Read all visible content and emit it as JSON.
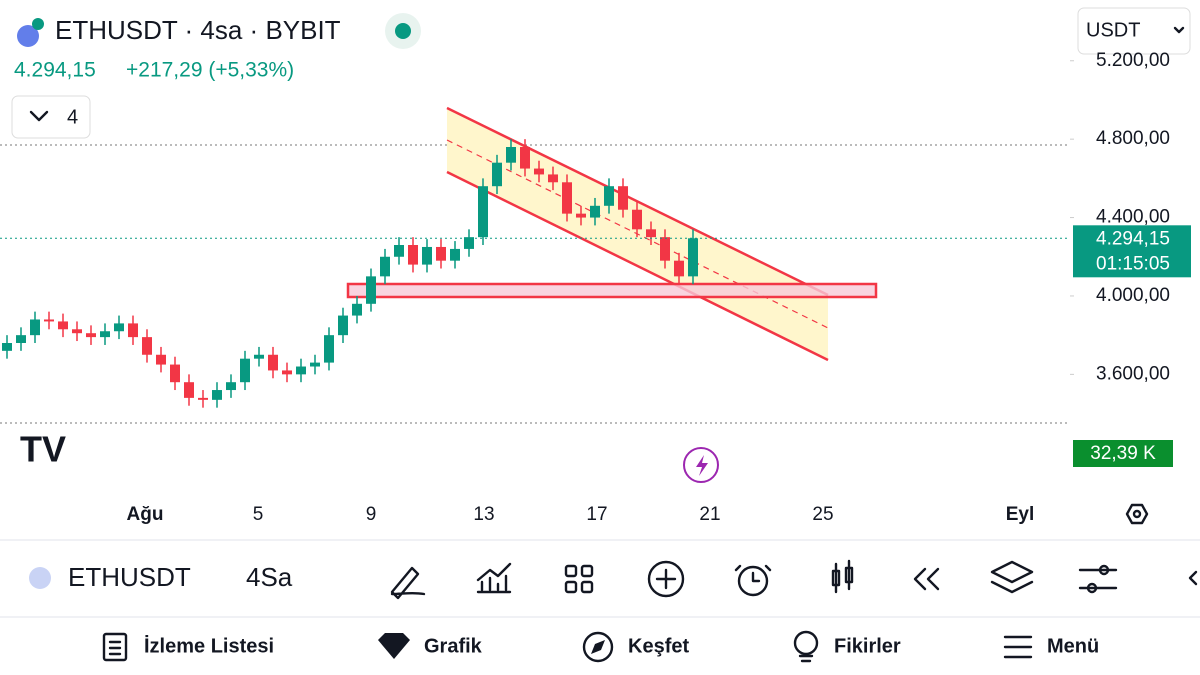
{
  "header": {
    "symbol_line": "ETHUSDT · 4sa · BYBIT",
    "price": "4.294,15",
    "change": "+217,29 (+5,33%)",
    "indicator_count": "4",
    "currency": "USDT"
  },
  "chart_data": {
    "type": "candlestick",
    "open": [
      3720,
      3760,
      3800,
      3880,
      3870,
      3830,
      3810,
      3790,
      3820,
      3860,
      3790,
      3700,
      3650,
      3560,
      3480,
      3470,
      3520,
      3560,
      3680,
      3700,
      3620,
      3600,
      3640,
      3660,
      3800,
      3900,
      3960,
      4100,
      4200,
      4260,
      4160,
      4250,
      4180,
      4240,
      4300,
      4560,
      4680,
      4760,
      4650,
      4620,
      4580,
      4420,
      4400,
      4460,
      4560,
      4440,
      4340,
      4300,
      4180,
      4100
    ],
    "high": [
      3800,
      3840,
      3920,
      3920,
      3910,
      3870,
      3850,
      3860,
      3900,
      3900,
      3830,
      3740,
      3690,
      3600,
      3520,
      3560,
      3600,
      3720,
      3740,
      3740,
      3660,
      3680,
      3700,
      3840,
      3940,
      4000,
      4140,
      4240,
      4300,
      4300,
      4290,
      4290,
      4280,
      4340,
      4600,
      4720,
      4800,
      4800,
      4690,
      4660,
      4620,
      4460,
      4500,
      4600,
      4600,
      4480,
      4380,
      4340,
      4220,
      4340
    ],
    "low": [
      3680,
      3720,
      3760,
      3830,
      3790,
      3770,
      3750,
      3750,
      3780,
      3750,
      3660,
      3610,
      3520,
      3440,
      3430,
      3430,
      3480,
      3520,
      3640,
      3580,
      3560,
      3560,
      3600,
      3620,
      3760,
      3860,
      3920,
      4060,
      4160,
      4120,
      4120,
      4140,
      4140,
      4200,
      4260,
      4520,
      4640,
      4610,
      4580,
      4540,
      4380,
      4360,
      4360,
      4420,
      4400,
      4300,
      4260,
      4140,
      4060,
      4060
    ],
    "close": [
      3760,
      3800,
      3880,
      3870,
      3830,
      3810,
      3790,
      3820,
      3860,
      3790,
      3700,
      3650,
      3560,
      3480,
      3470,
      3520,
      3560,
      3680,
      3700,
      3620,
      3600,
      3640,
      3660,
      3800,
      3900,
      3960,
      4100,
      4200,
      4260,
      4160,
      4250,
      4180,
      4240,
      4300,
      4560,
      4680,
      4760,
      4650,
      4620,
      4580,
      4420,
      4400,
      4460,
      4560,
      4440,
      4340,
      4300,
      4180,
      4100,
      4294.15
    ],
    "ylim": [
      3010,
      5510
    ],
    "yticks": [
      {
        "value": 3600,
        "label": "3.600,00"
      },
      {
        "value": 4000,
        "label": "4.000,00"
      },
      {
        "value": 4400,
        "label": "4.400,00"
      },
      {
        "value": 4800,
        "label": "4.800,00"
      },
      {
        "value": 5200,
        "label": "5.200,00"
      }
    ],
    "xticks": [
      "Ağu",
      "5",
      "9",
      "13",
      "17",
      "21",
      "25",
      "Eyl"
    ],
    "last_price": {
      "value": 4294.15,
      "label": "4.294,15"
    },
    "countdown": "01:15:05",
    "volume_label": "32,39 K",
    "up_color": "#089981",
    "down_color": "#f23645"
  },
  "toolbar": {
    "symbol": "ETHUSDT",
    "interval": "4Sa"
  },
  "nav": [
    "İzleme Listesi",
    "Grafik",
    "Keşfet",
    "Fikirler",
    "Menü"
  ]
}
